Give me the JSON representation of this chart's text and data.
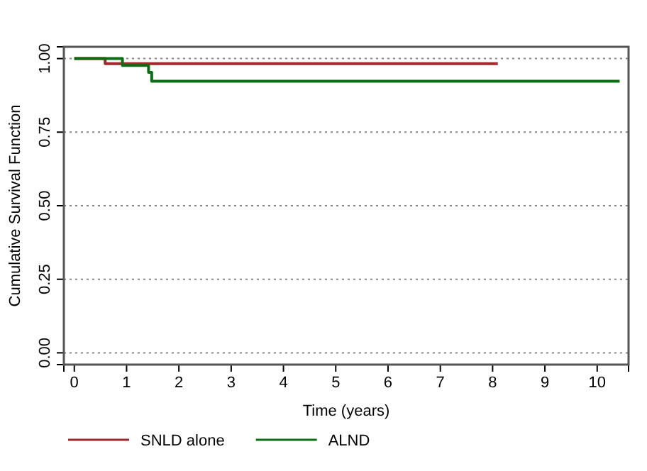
{
  "chart_data": {
    "type": "step",
    "xlabel": "Time (years)",
    "ylabel": "Cumulative Survival Function",
    "xlim": [
      -0.2,
      10.6
    ],
    "ylim": [
      -0.04,
      1.04
    ],
    "xticks": [
      0,
      1,
      2,
      3,
      4,
      5,
      6,
      7,
      8,
      9,
      10
    ],
    "yticks": [
      {
        "value": 0,
        "label": "0.00"
      },
      {
        "value": 0.25,
        "label": "0.25"
      },
      {
        "value": 0.5,
        "label": "0.50"
      },
      {
        "value": 0.75,
        "label": "0.75"
      },
      {
        "value": 1,
        "label": "1.00"
      }
    ],
    "grid": "y",
    "legend": "bottom",
    "line_style": "solid",
    "marker": "none",
    "series": [
      {
        "name": "SNLD alone",
        "color": "#a0282d",
        "x": [
          0,
          0.59,
          8.1
        ],
        "values": [
          1,
          0.983,
          0.983
        ]
      },
      {
        "name": "ALND",
        "color": "#0a6e14",
        "x": [
          0,
          0.92,
          1.42,
          1.48,
          10.43
        ],
        "values": [
          1,
          0.977,
          0.953,
          0.923,
          0.923
        ]
      }
    ]
  }
}
